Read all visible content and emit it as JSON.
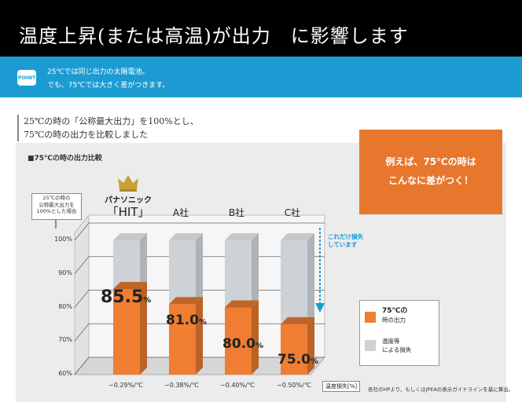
{
  "header": {
    "title": "温度上昇(または高温)が出力　に影響します"
  },
  "point": {
    "badge": "POINT",
    "line1": "25℃では同じ出力の太陽電池。",
    "line2": "でも、75℃では大きく差がつきます。"
  },
  "intro": {
    "line1": "25℃の時の「公称最大出力」を100%とし、",
    "line2": "75℃の時の出力を比較しました"
  },
  "chart_title": "■75℃の時の出力比較",
  "callout": {
    "line1": "例えば、75℃の時は",
    "line2": "こんなに差がつく！"
  },
  "colors": {
    "output": "#f07e32",
    "loss": "#cdd2d7",
    "accent": "#1c9bd2",
    "callout": "#e8772e"
  },
  "chart_data": {
    "type": "bar",
    "title": "■75℃の時の出力比較",
    "ylabel": "25℃の時の公称最大出力を100%とした場合",
    "ylim": [
      60,
      100
    ],
    "yticks": [
      "60%",
      "70%",
      "80%",
      "90%",
      "100%"
    ],
    "categories": [
      "「HIT」",
      "A社",
      "B社",
      "C社"
    ],
    "brand_prefix": "パナソニック",
    "series": [
      {
        "name": "75℃の時の出力",
        "values": [
          85.5,
          81.0,
          80.0,
          75.0
        ]
      },
      {
        "name": "温度等による損失",
        "values": [
          14.5,
          19.0,
          20.0,
          25.0
        ]
      }
    ],
    "value_labels": [
      {
        "num": "85.5",
        "unit": "%"
      },
      {
        "num": "81.0",
        "unit": "%"
      },
      {
        "num": "80.0",
        "unit": "%"
      },
      {
        "num": "75.0",
        "unit": "%"
      }
    ],
    "temperature_coefficients": [
      "−0.29%/℃",
      "−0.38%/℃",
      "−0.40%/℃",
      "−0.50%/℃"
    ],
    "coefficient_label": "温度損失[%]",
    "annotation": {
      "line1": "これだけ損失",
      "line2": "しています"
    },
    "legend_position": "right"
  },
  "legend": {
    "output_line1": "75℃の",
    "output_line2": "時の出力",
    "loss_line1": "温度等",
    "loss_line2": "による損失"
  },
  "ynote": {
    "line1": "25℃の時の",
    "line2": "公称最大出力を",
    "line3": "100%とした場合"
  },
  "source": "各社のHPより、もしくはJPEAの表示ガイドラインを基に算出。"
}
